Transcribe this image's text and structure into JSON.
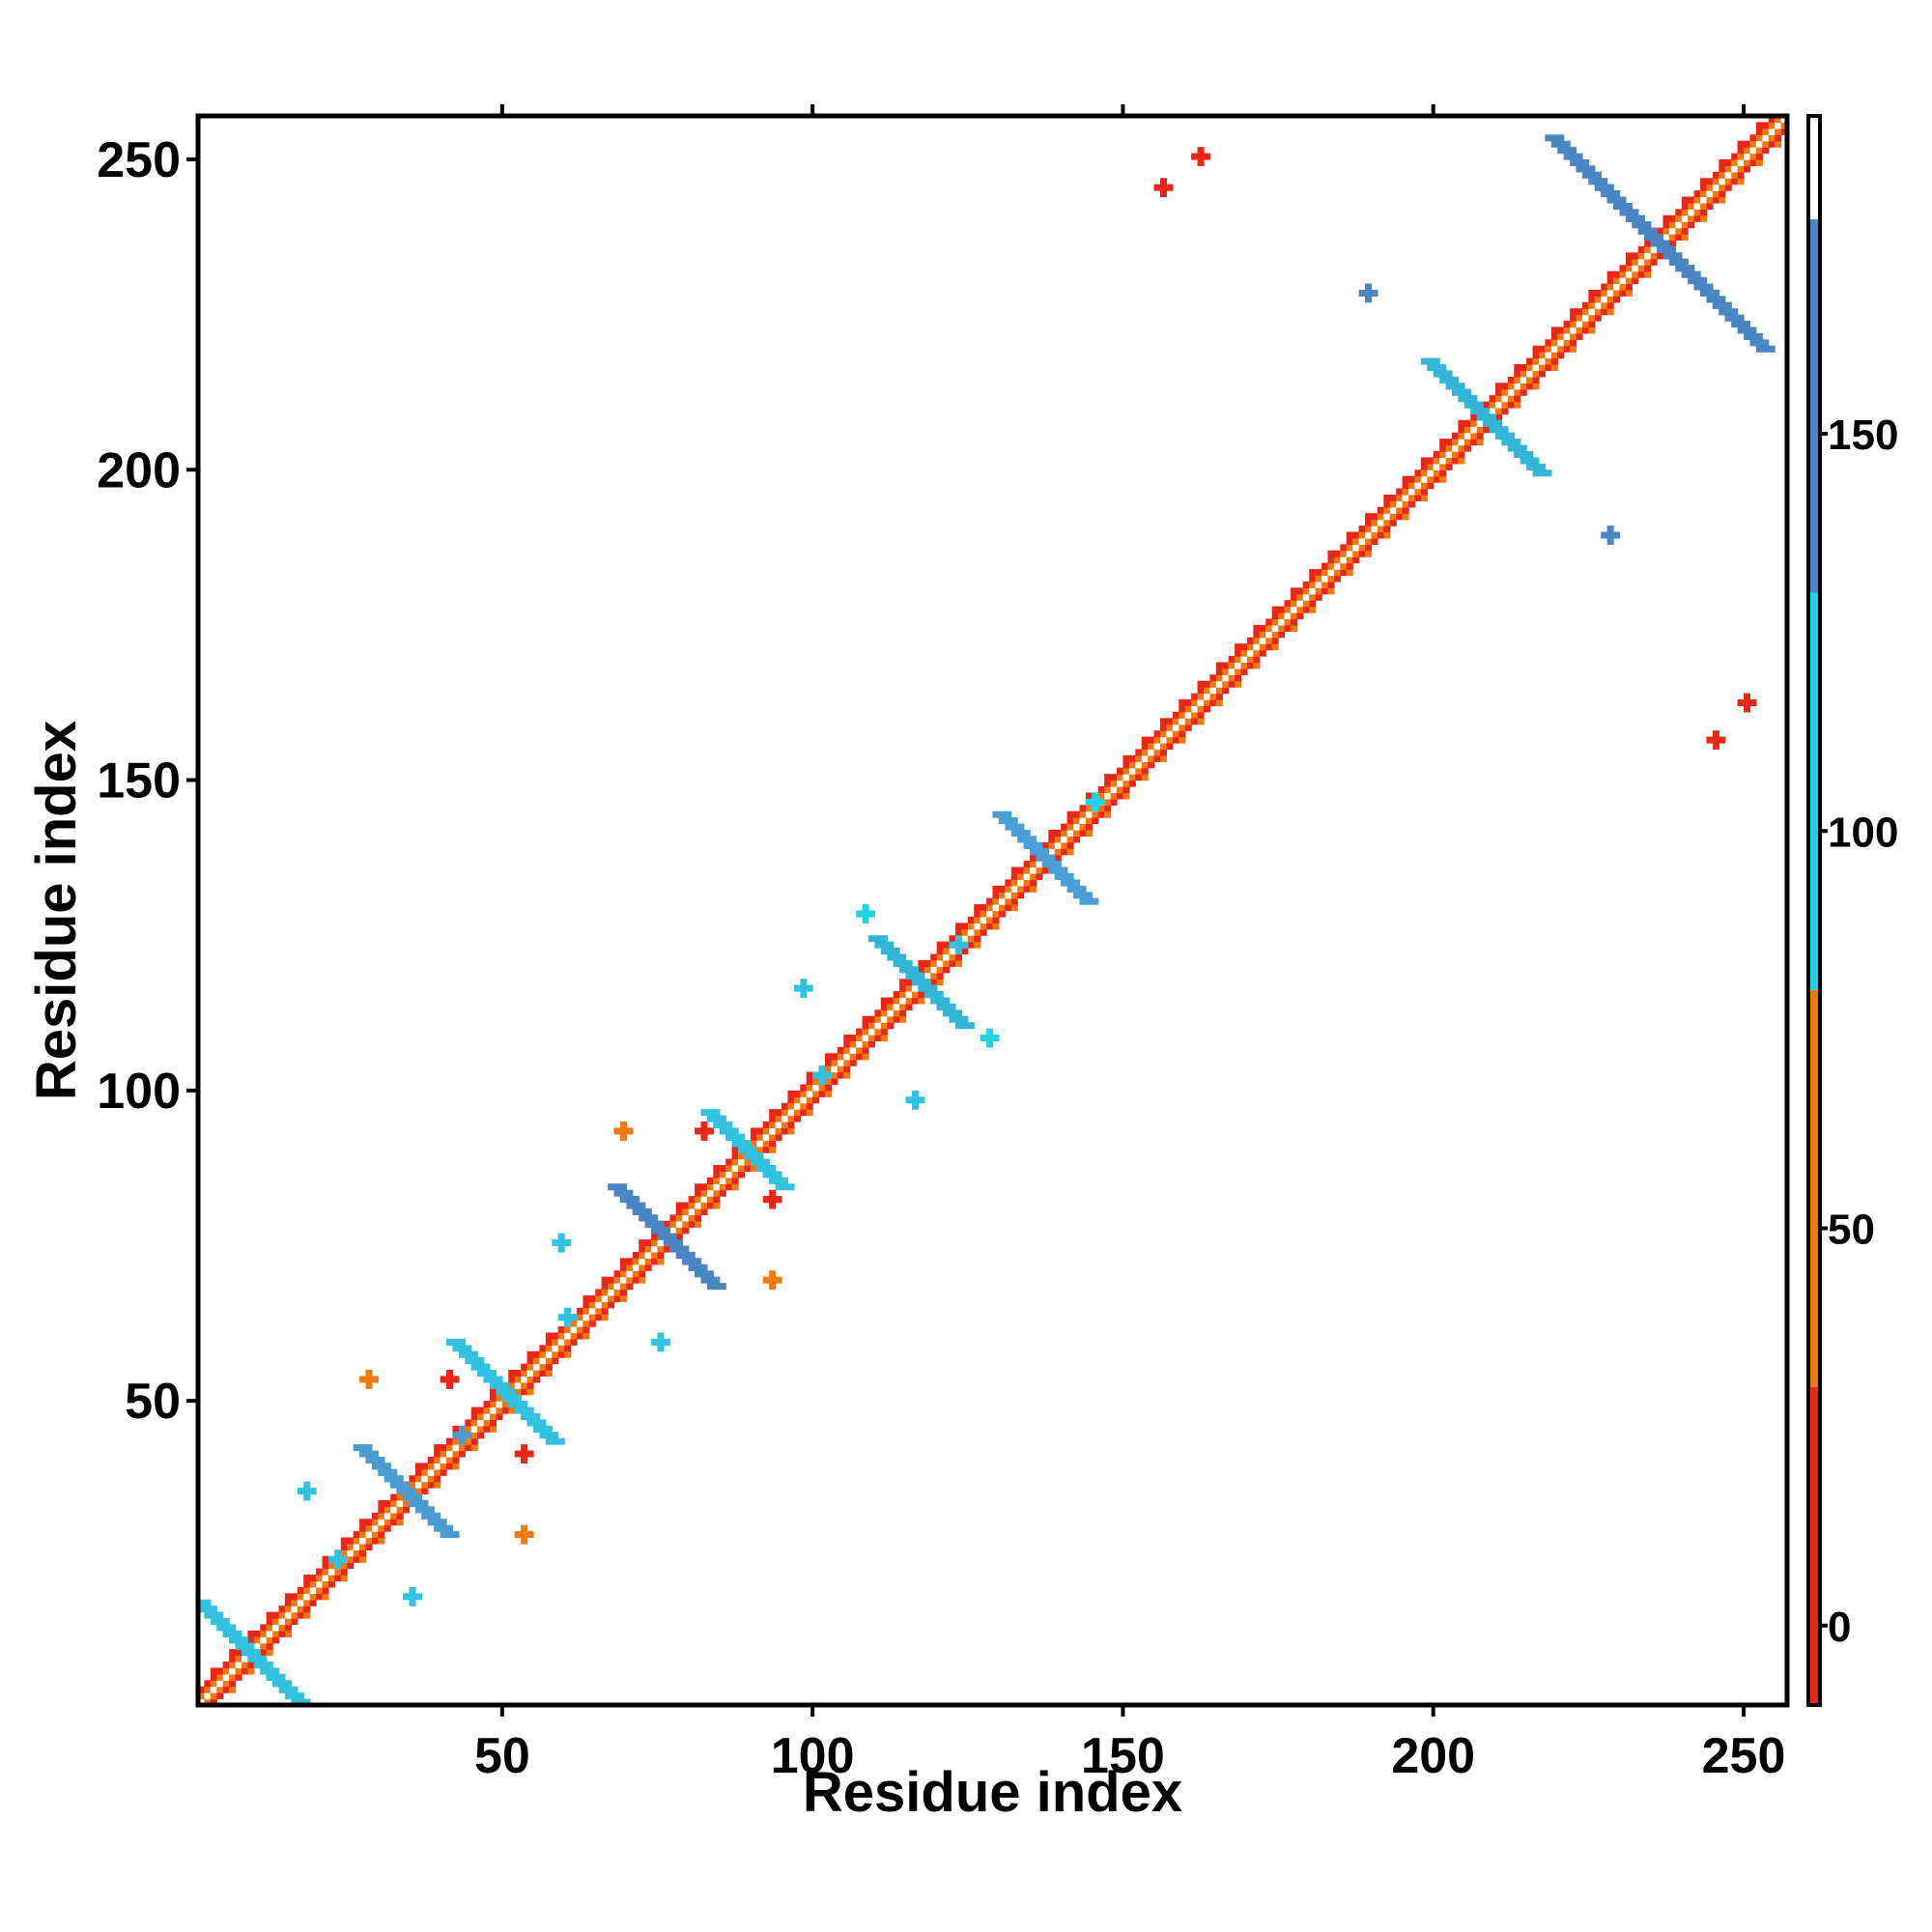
{
  "chart_data": {
    "type": "heatmap",
    "title": "",
    "xlabel": "Residue index",
    "ylabel": "Residue index",
    "xlim": [
      1,
      257
    ],
    "ylim": [
      1,
      257
    ],
    "x_ticks": [
      50,
      100,
      150,
      200,
      250
    ],
    "y_ticks": [
      50,
      100,
      150,
      200,
      250
    ],
    "x_tick_labels": [
      "50",
      "100",
      "150",
      "200",
      "250"
    ],
    "y_tick_labels": [
      "50",
      "100",
      "150",
      "200",
      "250"
    ],
    "grid": false,
    "colorbar": {
      "range": [
        -10,
        190
      ],
      "ticks": [
        0,
        50,
        100,
        150
      ],
      "tick_labels": [
        "0",
        "50",
        "100",
        "150"
      ],
      "bands": [
        {
          "from": -10,
          "to": 30,
          "color": "#e8271a"
        },
        {
          "from": 30,
          "to": 80,
          "color": "#f07a10"
        },
        {
          "from": 80,
          "to": 130,
          "color": "#1fd4e6"
        },
        {
          "from": 130,
          "to": 177,
          "color": "#4a86c4"
        },
        {
          "from": 177,
          "to": 190,
          "color": "#ffffff"
        }
      ]
    },
    "diagonal": {
      "from": 1,
      "to": 257
    },
    "features": [
      {
        "kind": "cross",
        "x": 9,
        "y": 9,
        "length": 8,
        "color": "#33c1e0"
      },
      {
        "kind": "cross",
        "x": 34,
        "y": 35,
        "length": 7,
        "color": "#4a9bd0"
      },
      {
        "kind": "cross",
        "x": 50,
        "y": 51,
        "length": 8,
        "color": "#33c1e0"
      },
      {
        "kind": "cross",
        "x": 76,
        "y": 76,
        "length": 8,
        "color": "#4a86c4"
      },
      {
        "kind": "cross",
        "x": 89,
        "y": 90,
        "length": 6,
        "color": "#33c1e0"
      },
      {
        "kind": "cross",
        "x": 117,
        "y": 117,
        "length": 7,
        "color": "#33b5d8"
      },
      {
        "kind": "cross",
        "x": 137,
        "y": 137,
        "length": 7,
        "color": "#4aa0d6"
      },
      {
        "kind": "cross",
        "x": 208,
        "y": 208,
        "length": 9,
        "color": "#33b5d8"
      },
      {
        "kind": "cross",
        "x": 236,
        "y": 236,
        "length": 17,
        "color": "#4a86c4"
      },
      {
        "kind": "blob",
        "x": 189,
        "y": 228,
        "color": "#4a86c4"
      },
      {
        "kind": "blob",
        "x": 228,
        "y": 189,
        "color": "#4a86c4"
      },
      {
        "kind": "blob",
        "x": 162,
        "y": 250,
        "color": "#e8271a"
      },
      {
        "kind": "blob",
        "x": 156,
        "y": 245,
        "color": "#e8271a"
      },
      {
        "kind": "blob",
        "x": 250,
        "y": 162,
        "color": "#e8271a"
      },
      {
        "kind": "blob",
        "x": 245,
        "y": 156,
        "color": "#e8271a"
      },
      {
        "kind": "blob",
        "x": 145,
        "y": 146,
        "color": "#1fd4e6"
      },
      {
        "kind": "blob",
        "x": 98,
        "y": 116,
        "color": "#33c1e0"
      },
      {
        "kind": "blob",
        "x": 116,
        "y": 98,
        "color": "#33c1e0"
      },
      {
        "kind": "blob",
        "x": 69,
        "y": 93,
        "color": "#f07a10"
      },
      {
        "kind": "blob",
        "x": 93,
        "y": 69,
        "color": "#f07a10"
      },
      {
        "kind": "blob",
        "x": 82,
        "y": 93,
        "color": "#e8271a"
      },
      {
        "kind": "blob",
        "x": 93,
        "y": 82,
        "color": "#e8271a"
      },
      {
        "kind": "blob",
        "x": 59,
        "y": 75,
        "color": "#33c1e0"
      },
      {
        "kind": "blob",
        "x": 75,
        "y": 59,
        "color": "#33c1e0"
      },
      {
        "kind": "blob",
        "x": 28,
        "y": 53,
        "color": "#f07a10"
      },
      {
        "kind": "blob",
        "x": 53,
        "y": 28,
        "color": "#f07a10"
      },
      {
        "kind": "blob",
        "x": 41,
        "y": 53,
        "color": "#e8271a"
      },
      {
        "kind": "blob",
        "x": 53,
        "y": 41,
        "color": "#e8271a"
      },
      {
        "kind": "blob",
        "x": 18,
        "y": 35,
        "color": "#33c1e0"
      },
      {
        "kind": "blob",
        "x": 35,
        "y": 18,
        "color": "#33c1e0"
      },
      {
        "kind": "blob",
        "x": 108,
        "y": 128,
        "color": "#1fd4e6"
      },
      {
        "kind": "blob",
        "x": 128,
        "y": 108,
        "color": "#1fd4e6"
      },
      {
        "kind": "blob",
        "x": 123,
        "y": 123,
        "color": "#33c1e0"
      },
      {
        "kind": "blob",
        "x": 101,
        "y": 102,
        "color": "#33c1e0"
      },
      {
        "kind": "blob",
        "x": 60,
        "y": 63,
        "color": "#33c1e0"
      },
      {
        "kind": "blob",
        "x": 23,
        "y": 24,
        "color": "#33c1e0"
      },
      {
        "kind": "blob",
        "x": 43,
        "y": 44,
        "color": "#4a9bd0"
      }
    ]
  }
}
